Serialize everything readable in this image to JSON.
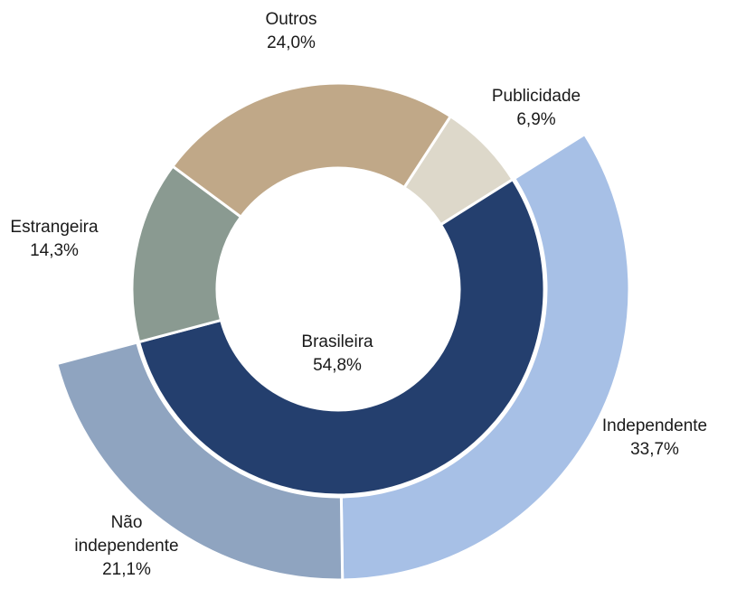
{
  "chart_data": {
    "type": "donut",
    "inner_ring": {
      "categories": [
        "Publicidade",
        "Brasileira",
        "Estrangeira",
        "Outros"
      ],
      "values": [
        6.9,
        54.8,
        14.3,
        24.0
      ],
      "value_labels": [
        "6,9%",
        "54,8%",
        "14,3%",
        "24,0%"
      ],
      "colors": [
        "#DDD8CA",
        "#243F6E",
        "#8A9A91",
        "#C0A888"
      ]
    },
    "outer_ring": {
      "categories": [
        "Independente",
        "Não independente"
      ],
      "values": [
        33.7,
        21.1
      ],
      "value_labels": [
        "33,7%",
        "21,1%"
      ],
      "colors": [
        "#A7C0E6",
        "#8FA4C0"
      ]
    }
  }
}
